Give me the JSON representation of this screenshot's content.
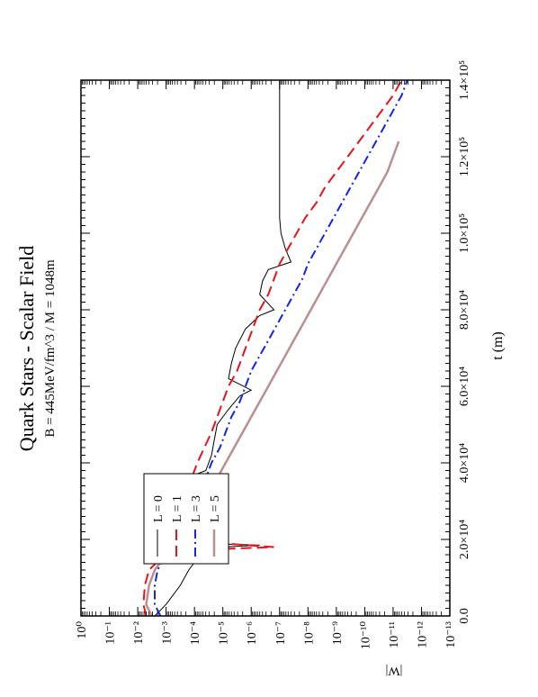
{
  "chart_data": {
    "type": "line",
    "orientation": "rotated-90-ccw",
    "title": "Quark Stars - Scalar Field",
    "subtitle": "B = 445MeV/fm^3 / M = 1048m",
    "xlabel": "t (m)",
    "ylabel": "|W|",
    "x_scale": "linear",
    "y_scale": "log",
    "xlim": [
      0,
      140000
    ],
    "ylim": [
      1e-13,
      1
    ],
    "x_ticks": [
      {
        "value": 0,
        "label": "0.0"
      },
      {
        "value": 20000,
        "label": "2.0×10⁴"
      },
      {
        "value": 40000,
        "label": "4.0×10⁴"
      },
      {
        "value": 60000,
        "label": "6.0×10⁴"
      },
      {
        "value": 80000,
        "label": "8.0×10⁴"
      },
      {
        "value": 100000,
        "label": "1.0×10⁵"
      },
      {
        "value": 120000,
        "label": "1.2×10⁵"
      },
      {
        "value": 140000,
        "label": "1.4×10⁵"
      }
    ],
    "y_ticks": [
      {
        "value": 0,
        "label": "10⁰"
      },
      {
        "value": -1,
        "label": "10⁻¹"
      },
      {
        "value": -2,
        "label": "10⁻²"
      },
      {
        "value": -3,
        "label": "10⁻³"
      },
      {
        "value": -4,
        "label": "10⁻⁴"
      },
      {
        "value": -5,
        "label": "10⁻⁵"
      },
      {
        "value": -6,
        "label": "10⁻⁶"
      },
      {
        "value": -7,
        "label": "10⁻⁷"
      },
      {
        "value": -8,
        "label": "10⁻⁸"
      },
      {
        "value": -9,
        "label": "10⁻⁹"
      },
      {
        "value": -10,
        "label": "10⁻¹⁰"
      },
      {
        "value": -11,
        "label": "10⁻¹¹"
      },
      {
        "value": -12,
        "label": "10⁻¹²"
      },
      {
        "value": -13,
        "label": "10⁻¹³"
      }
    ],
    "legend_position": "top-left",
    "grid": false,
    "series": [
      {
        "name": "L = 0",
        "color": "#000000",
        "dash": "solid",
        "width": 1.0,
        "x": [
          0,
          3000,
          8000,
          12000,
          16000,
          18000,
          18500,
          19000,
          20000,
          24000,
          29000,
          33000,
          36000,
          38000,
          42000,
          46000,
          50000,
          54000,
          57500,
          59000,
          62000,
          66000,
          70000,
          75000,
          78500,
          80000,
          84000,
          87500,
          90500,
          92500,
          96000,
          100000,
          104000,
          108000,
          112000,
          116000,
          120000,
          125000,
          130000,
          135000,
          140000
        ],
        "y": [
          -2.6,
          -3.0,
          -3.5,
          -3.8,
          -4.2,
          -5.0,
          -6.3,
          -4.2,
          -3.2,
          -3.15,
          -3.2,
          -3.4,
          -3.7,
          -4.4,
          -4.6,
          -4.7,
          -4.8,
          -5.2,
          -5.6,
          -6.0,
          -5.2,
          -5.3,
          -5.45,
          -5.8,
          -6.3,
          -6.8,
          -6.3,
          -6.4,
          -6.6,
          -7.4,
          -7.2,
          -7.05,
          -7.0,
          -7.0,
          -7.0,
          -7.0,
          -7.0,
          -7.0,
          -7.0,
          -7.0,
          -7.0
        ]
      },
      {
        "name": "L = 1",
        "color": "#e8141c",
        "dash": "12 6",
        "width": 2.0,
        "x": [
          0,
          3000,
          8000,
          12000,
          15000,
          17000,
          18000,
          20000,
          22000,
          25000,
          28000,
          31000,
          33000,
          36000,
          40000,
          44000,
          48000,
          52000,
          56000,
          60000,
          64000,
          68000,
          72000,
          76000,
          80000,
          84000,
          88000,
          92000,
          96000,
          100000,
          104000,
          108000,
          112000,
          116000,
          120000,
          124000,
          128000,
          132000,
          136000,
          140000
        ],
        "y": [
          -2.3,
          -2.2,
          -2.25,
          -2.4,
          -2.8,
          -3.2,
          -6.8,
          -3.0,
          -3.1,
          -3.2,
          -3.4,
          -3.6,
          -3.7,
          -3.9,
          -4.1,
          -4.35,
          -4.6,
          -4.8,
          -5.0,
          -5.2,
          -5.5,
          -5.7,
          -5.9,
          -6.1,
          -6.3,
          -6.6,
          -6.8,
          -7.0,
          -7.3,
          -7.6,
          -7.9,
          -8.3,
          -8.6,
          -9.0,
          -9.4,
          -9.8,
          -10.2,
          -10.6,
          -11.0,
          -11.3
        ]
      },
      {
        "name": "L = 3",
        "color": "#1424e8",
        "dash": "10 4 2 4",
        "width": 2.0,
        "x": [
          0,
          3000,
          8000,
          12000,
          15000,
          18000,
          20000,
          24000,
          28000,
          32000,
          36000,
          40000,
          44000,
          48000,
          52000,
          56000,
          60000,
          64000,
          68000,
          72000,
          76000,
          80000,
          84000,
          88000,
          92000,
          96000,
          100000,
          104000,
          108000,
          112000,
          116000,
          120000,
          124000,
          128000,
          132000,
          136000,
          140000
        ],
        "y": [
          -2.8,
          -2.6,
          -2.6,
          -2.7,
          -2.9,
          -3.2,
          -3.4,
          -3.6,
          -3.9,
          -4.1,
          -4.4,
          -4.6,
          -4.9,
          -5.1,
          -5.3,
          -5.6,
          -5.8,
          -6.0,
          -6.3,
          -6.6,
          -6.9,
          -7.2,
          -7.5,
          -7.8,
          -8.0,
          -8.3,
          -8.6,
          -8.9,
          -9.2,
          -9.5,
          -9.8,
          -10.1,
          -10.4,
          -10.7,
          -11.0,
          -11.3,
          -11.5
        ]
      },
      {
        "name": "L = 5",
        "color": "#bc8f8f",
        "dash": "solid",
        "width": 2.5,
        "x": [
          0,
          3000,
          8000,
          12000,
          15000,
          18000,
          20000,
          24000,
          28000,
          32000,
          36000,
          40000,
          44000,
          48000,
          52000,
          56000,
          60000,
          64000,
          68000,
          72000,
          76000,
          80000,
          84000,
          88000,
          92000,
          96000,
          100000,
          104000,
          108000,
          112000,
          116000,
          120000,
          124000
        ],
        "y": [
          -2.5,
          -2.3,
          -2.4,
          -2.6,
          -2.9,
          -3.3,
          -3.6,
          -3.9,
          -4.2,
          -4.5,
          -4.8,
          -5.1,
          -5.4,
          -5.7,
          -6.0,
          -6.3,
          -6.6,
          -6.9,
          -7.2,
          -7.5,
          -7.8,
          -8.1,
          -8.4,
          -8.7,
          -9.0,
          -9.3,
          -9.6,
          -9.9,
          -10.2,
          -10.5,
          -10.8,
          -11.0,
          -11.2
        ]
      }
    ]
  }
}
